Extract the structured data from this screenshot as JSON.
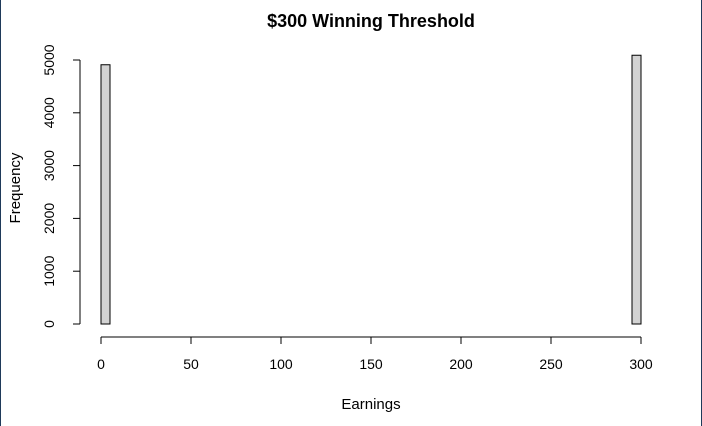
{
  "chart_data": {
    "type": "bar",
    "title": "$300 Winning Threshold",
    "xlabel": "Earnings",
    "ylabel": "Frequency",
    "xlim": [
      0,
      300
    ],
    "ylim": [
      0,
      5000
    ],
    "x_ticks": [
      "0",
      "50",
      "100",
      "150",
      "200",
      "250",
      "300"
    ],
    "y_ticks": [
      "0",
      "1000",
      "2000",
      "3000",
      "4000",
      "5000"
    ],
    "bins": [
      {
        "x_start": 0,
        "x_end": 5,
        "value": 4910
      },
      {
        "x_start": 295,
        "x_end": 300,
        "value": 5090
      }
    ],
    "bar_fill": "#d3d3d3",
    "bar_stroke": "#000000",
    "grid": false,
    "legend": "none"
  }
}
